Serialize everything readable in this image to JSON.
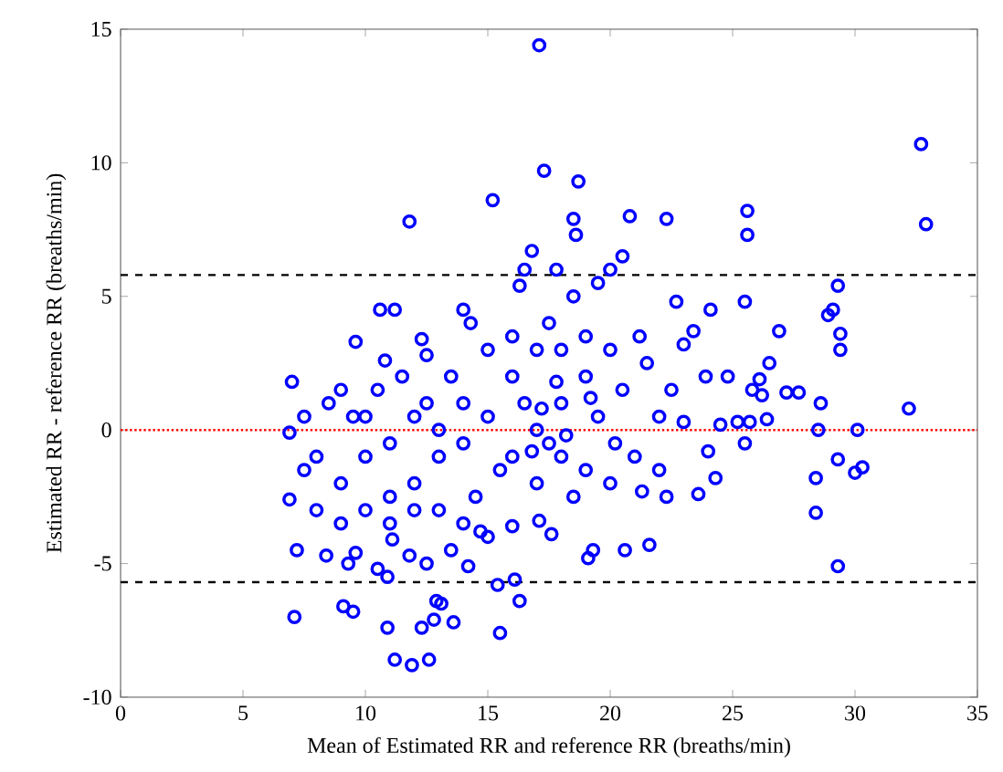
{
  "chart_data": {
    "type": "scatter",
    "xlabel": "Mean of Estimated RR and reference RR (breaths/min)",
    "ylabel": "Estimated RR - reference RR (breaths/min)",
    "xlim": [
      0,
      35
    ],
    "ylim": [
      -10,
      15
    ],
    "xticks": [
      0,
      5,
      10,
      15,
      20,
      25,
      30,
      35
    ],
    "yticks": [
      -10,
      -5,
      0,
      5,
      10,
      15
    ],
    "marker": "circle",
    "ref_lines": [
      {
        "axis": "y",
        "value": 5.8,
        "color": "#000000",
        "line_style": "dashed"
      },
      {
        "axis": "y",
        "value": 0,
        "color": "#ff0000",
        "line_style": "dotted"
      },
      {
        "axis": "y",
        "value": -5.7,
        "color": "#000000",
        "line_style": "dashed"
      }
    ],
    "series": [
      {
        "color": "#0000ff",
        "x": [
          17.1,
          17.3,
          15.2,
          11.8,
          18.7,
          18.5,
          18.6,
          20.8,
          22.3,
          25.6,
          25.6,
          32.7,
          32.9,
          29.3,
          29.1,
          29.4,
          29.4,
          26.9,
          28.9,
          25.5,
          24.1,
          23.4,
          22.7,
          32.2,
          30.1,
          30.0,
          30.3,
          29.3,
          28.4,
          28.4,
          29.3,
          28.5,
          28.6,
          27.7,
          27.2,
          26.1,
          26.2,
          25.7,
          25.2,
          26.4,
          24.5,
          24.0,
          24.3,
          23.6,
          23.9,
          21.3,
          22.3,
          21.6,
          20.6,
          19.1,
          19.3,
          17.1,
          17.6,
          16.1,
          16.3,
          15.4,
          15.5,
          10.9,
          11.2,
          11.9,
          12.6,
          12.3,
          12.8,
          12.9,
          13.1,
          13.6,
          9.1,
          9.5,
          7.1,
          6.9,
          6.9,
          7.0,
          7.2,
          10.9,
          10.5,
          11.8,
          12.5,
          14.2,
          14.7,
          11.1,
          9.6,
          8.4,
          16.0,
          14.0,
          14.3,
          11.2,
          10.6,
          12.3,
          9.6,
          16.5,
          16.8,
          17.8,
          16.3,
          17,
          18,
          19,
          18,
          17,
          16,
          20,
          19,
          18,
          17.5,
          18.5,
          19.5,
          20,
          20.5,
          16,
          15,
          14,
          13,
          12,
          11,
          10,
          9,
          8,
          8.5,
          9.5,
          10.5,
          11.5,
          12.5,
          13.5,
          14.5,
          15.5,
          16.5,
          17.5,
          18.5,
          19.5,
          20.5,
          21,
          21.5,
          22,
          22.5,
          20,
          19,
          17,
          16,
          15,
          14,
          13,
          12,
          11,
          10,
          9,
          8,
          9,
          10,
          11,
          12,
          13,
          14,
          15,
          7.5,
          7.5,
          13.5,
          12.5,
          10.8,
          9.3,
          17.8,
          18.2,
          17.2,
          16.8,
          19.2,
          20.2,
          21.2,
          22.0,
          23,
          23,
          24.8,
          25.5,
          26.5,
          25.8
        ],
        "values": [
          14.4,
          9.7,
          8.6,
          7.8,
          9.3,
          7.9,
          7.3,
          8.0,
          7.9,
          8.2,
          7.3,
          10.7,
          7.7,
          5.4,
          4.5,
          3.6,
          3.0,
          3.7,
          4.3,
          4.8,
          4.5,
          3.7,
          4.8,
          0.8,
          0.0,
          -1.6,
          -1.4,
          -1.1,
          -1.8,
          -3.1,
          -5.1,
          0.0,
          1.0,
          1.4,
          1.4,
          1.9,
          1.3,
          0.3,
          0.3,
          0.4,
          0.2,
          -0.8,
          -1.8,
          -2.4,
          2.0,
          -2.3,
          -2.5,
          -4.3,
          -4.5,
          -4.8,
          -4.5,
          -3.4,
          -3.9,
          -5.6,
          -6.4,
          -5.8,
          -7.6,
          -7.4,
          -8.6,
          -8.8,
          -8.6,
          -7.4,
          -7.1,
          -6.4,
          -6.5,
          -7.2,
          -6.6,
          -6.8,
          -7.0,
          -2.6,
          -0.1,
          1.8,
          -4.5,
          -5.5,
          -5.2,
          -4.7,
          -5.0,
          -5.1,
          -3.8,
          -4.1,
          -4.6,
          -4.7,
          -3.6,
          4.5,
          4.0,
          4.5,
          4.5,
          3.4,
          3.3,
          6.0,
          6.7,
          6.0,
          5.4,
          0,
          1,
          2,
          -1,
          -2,
          2,
          3,
          -1.5,
          3,
          4,
          5,
          5.5,
          6,
          6.5,
          -1,
          0.5,
          1,
          -1,
          -2,
          -2.5,
          -1,
          -2,
          -1,
          1,
          0.5,
          1.5,
          2,
          1,
          2,
          -2.5,
          -1.5,
          1,
          -0.5,
          -2.5,
          0.5,
          1.5,
          -1,
          2.5,
          0.5,
          1.5,
          -2,
          3.5,
          3,
          3.5,
          3,
          -0.5,
          0,
          0.5,
          -0.5,
          0.5,
          1.5,
          -3,
          -3.5,
          -3,
          -3.5,
          -3,
          -3,
          -3.5,
          -4,
          -1.5,
          0.5,
          -4.5,
          2.8,
          2.6,
          -5,
          1.8,
          -0.2,
          0.8,
          -0.8,
          1.2,
          -0.5,
          3.5,
          -1.5,
          0.3,
          3.2,
          2.0,
          -0.5,
          2.5,
          1.5
        ]
      }
    ]
  }
}
